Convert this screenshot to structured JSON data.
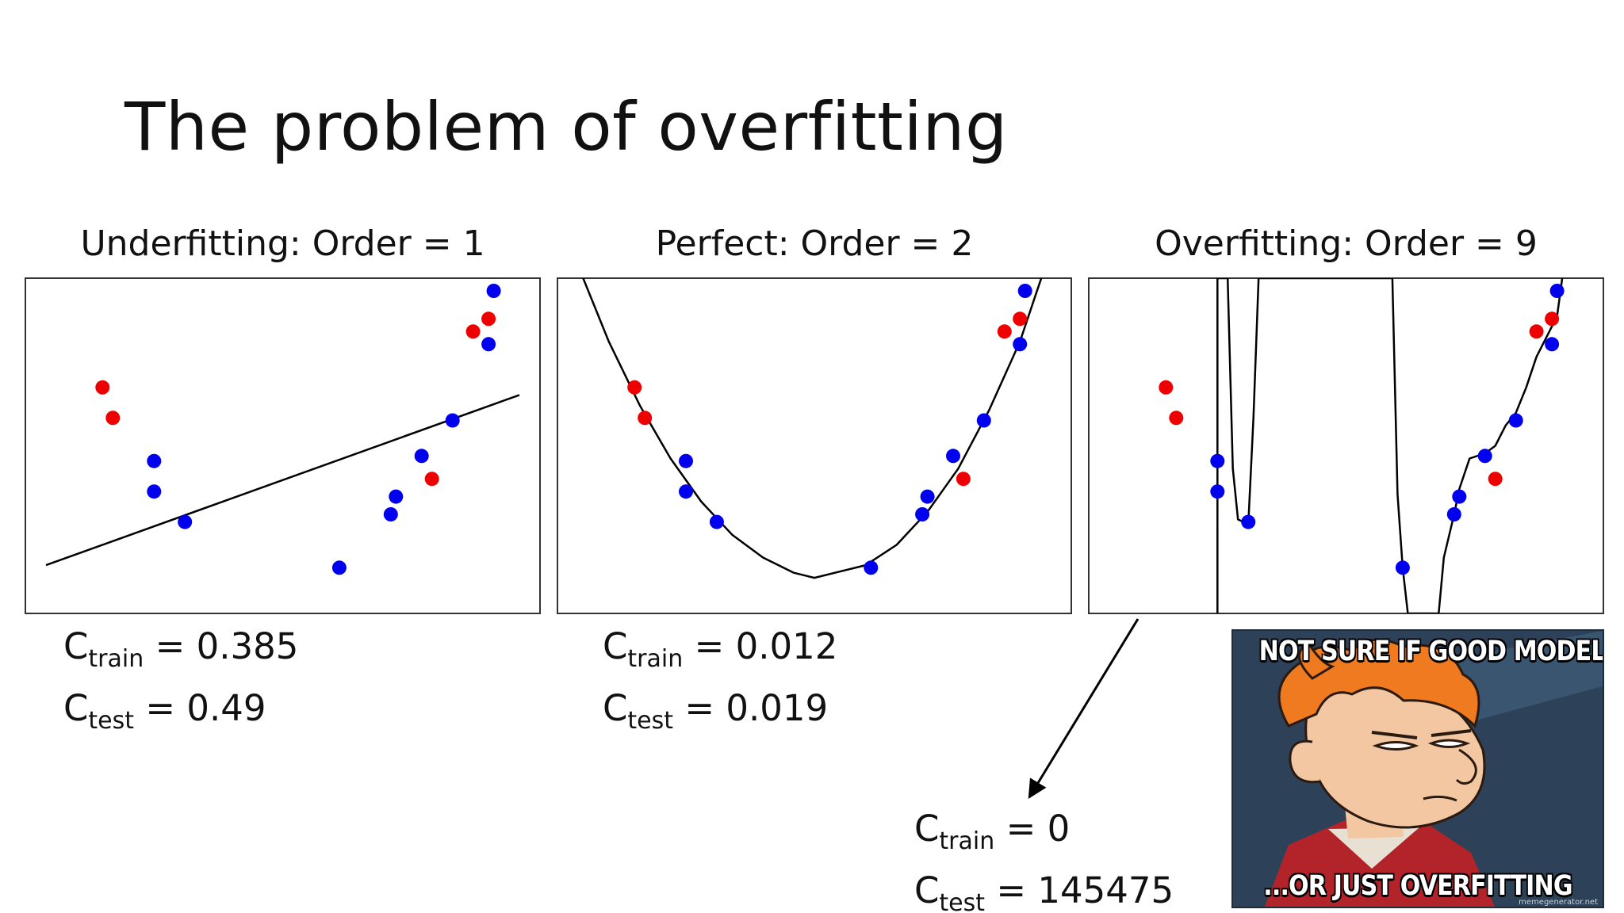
{
  "slide": {
    "title": "The problem of overfitting"
  },
  "panels": [
    {
      "title": "Underfitting: Order = 1",
      "train_label": "C",
      "train_sub": "train",
      "train_value": " = 0.385",
      "test_label": "C",
      "test_sub": "test",
      "test_value": " = 0.49"
    },
    {
      "title": "Perfect: Order = 2",
      "train_label": "C",
      "train_sub": "train",
      "train_value": " = 0.012",
      "test_label": "C",
      "test_sub": "test",
      "test_value": " = 0.019"
    },
    {
      "title": "Overfitting: Order = 9",
      "train_label": "C",
      "train_sub": "train",
      "train_value": " = 0",
      "test_label": "C",
      "test_sub": "test",
      "test_value": " = 145475"
    }
  ],
  "chart_data": [
    {
      "type": "scatter",
      "title": "Underfitting: Order = 1",
      "fit": "linear",
      "xlim": [
        0,
        1
      ],
      "ylim": [
        -0.27,
        1.05
      ],
      "series": [
        {
          "color": "#0000ee",
          "points": [
            [
              0.25,
              0.33
            ],
            [
              0.25,
              0.21
            ],
            [
              0.31,
              0.09
            ],
            [
              0.61,
              -0.09
            ],
            [
              0.71,
              0.12
            ],
            [
              0.72,
              0.19
            ],
            [
              0.77,
              0.35
            ],
            [
              0.83,
              0.49
            ],
            [
              0.9,
              0.79
            ],
            [
              0.91,
              1.0
            ]
          ]
        },
        {
          "color": "#ee0000",
          "points": [
            [
              0.15,
              0.62
            ],
            [
              0.17,
              0.5
            ],
            [
              0.79,
              0.26
            ],
            [
              0.87,
              0.84
            ],
            [
              0.9,
              0.89
            ]
          ]
        }
      ],
      "curve": [
        [
          0.04,
          -0.08
        ],
        [
          0.96,
          0.59
        ]
      ]
    },
    {
      "type": "scatter",
      "title": "Perfect: Order = 2",
      "fit": "quadratic",
      "xlim": [
        0,
        1
      ],
      "ylim": [
        -0.27,
        1.05
      ],
      "series": [
        {
          "color": "#0000ee",
          "points": [
            [
              0.25,
              0.33
            ],
            [
              0.25,
              0.21
            ],
            [
              0.31,
              0.09
            ],
            [
              0.61,
              -0.09
            ],
            [
              0.71,
              0.12
            ],
            [
              0.72,
              0.19
            ],
            [
              0.77,
              0.35
            ],
            [
              0.83,
              0.49
            ],
            [
              0.9,
              0.79
            ],
            [
              0.91,
              1.0
            ]
          ]
        },
        {
          "color": "#ee0000",
          "points": [
            [
              0.15,
              0.62
            ],
            [
              0.17,
              0.5
            ],
            [
              0.79,
              0.26
            ],
            [
              0.87,
              0.84
            ],
            [
              0.9,
              0.89
            ]
          ]
        }
      ],
      "curve": [
        [
          0.04,
          1.1
        ],
        [
          0.1,
          0.8
        ],
        [
          0.16,
          0.55
        ],
        [
          0.22,
          0.34
        ],
        [
          0.28,
          0.17
        ],
        [
          0.34,
          0.04
        ],
        [
          0.4,
          -0.05
        ],
        [
          0.46,
          -0.11
        ],
        [
          0.5,
          -0.13
        ],
        [
          0.54,
          -0.11
        ],
        [
          0.6,
          -0.08
        ],
        [
          0.66,
          0.0
        ],
        [
          0.72,
          0.13
        ],
        [
          0.78,
          0.3
        ],
        [
          0.84,
          0.53
        ],
        [
          0.9,
          0.8
        ],
        [
          0.93,
          0.98
        ],
        [
          0.95,
          1.1
        ]
      ]
    },
    {
      "type": "scatter",
      "title": "Overfitting: Order = 9",
      "fit": "order-9 polynomial",
      "xlim": [
        0,
        1
      ],
      "ylim": [
        -0.27,
        1.05
      ],
      "series": [
        {
          "color": "#0000ee",
          "points": [
            [
              0.25,
              0.33
            ],
            [
              0.25,
              0.21
            ],
            [
              0.31,
              0.09
            ],
            [
              0.61,
              -0.09
            ],
            [
              0.71,
              0.12
            ],
            [
              0.72,
              0.19
            ],
            [
              0.77,
              0.35
            ],
            [
              0.83,
              0.49
            ],
            [
              0.9,
              0.79
            ],
            [
              0.91,
              1.0
            ]
          ]
        },
        {
          "color": "#ee0000",
          "points": [
            [
              0.15,
              0.62
            ],
            [
              0.17,
              0.5
            ],
            [
              0.79,
              0.26
            ],
            [
              0.87,
              0.84
            ],
            [
              0.9,
              0.89
            ]
          ]
        }
      ],
      "curve": [
        [
          0.25,
          -0.27
        ],
        [
          0.25,
          1.05
        ],
        [
          0.27,
          1.05
        ],
        [
          0.28,
          0.3
        ],
        [
          0.29,
          0.1
        ],
        [
          0.31,
          0.08
        ],
        [
          0.32,
          0.5
        ],
        [
          0.33,
          1.05
        ],
        [
          0.59,
          1.05
        ],
        [
          0.6,
          0.2
        ],
        [
          0.61,
          -0.09
        ],
        [
          0.62,
          -0.27
        ],
        [
          0.68,
          -0.27
        ],
        [
          0.69,
          -0.05
        ],
        [
          0.71,
          0.12
        ],
        [
          0.72,
          0.22
        ],
        [
          0.74,
          0.34
        ],
        [
          0.77,
          0.36
        ],
        [
          0.79,
          0.39
        ],
        [
          0.81,
          0.47
        ],
        [
          0.83,
          0.52
        ],
        [
          0.85,
          0.62
        ],
        [
          0.87,
          0.74
        ],
        [
          0.89,
          0.82
        ],
        [
          0.91,
          0.9
        ],
        [
          0.92,
          1.05
        ]
      ]
    }
  ],
  "arrow": {
    "from_panel": 3,
    "to_label": "train/test metrics"
  },
  "meme": {
    "top_text": "NOT SURE IF GOOD MODEL...",
    "bottom_text": "...OR JUST OVERFITTING",
    "watermark": "memegenerator.net",
    "colors": {
      "background": "#2d4258",
      "hair": "#f07a20",
      "skin": "#f3c7a2",
      "shirt": "#b3242a"
    }
  }
}
